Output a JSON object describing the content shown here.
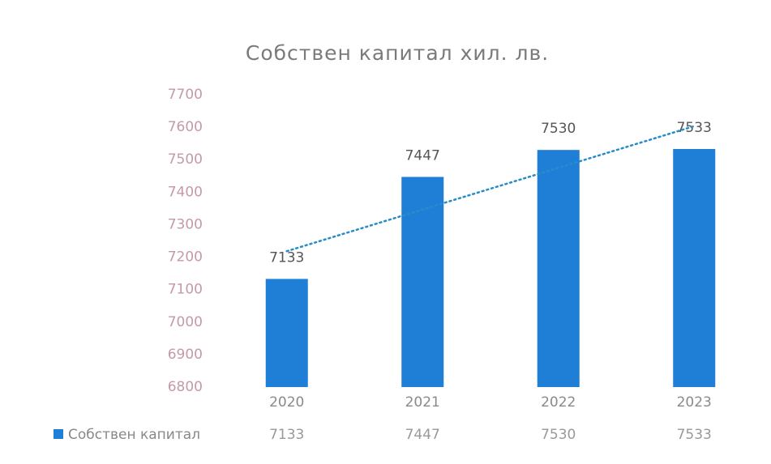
{
  "chart_data": {
    "type": "bar",
    "title": "Собствен капитал хил. лв.",
    "categories": [
      "2020",
      "2021",
      "2022",
      "2023"
    ],
    "series": [
      {
        "name": "Собствен капитал",
        "color": "#1f7fd6",
        "values": [
          7133,
          7447,
          7530,
          7533
        ]
      }
    ],
    "ylim": [
      6800,
      7700
    ],
    "yticks": [
      6800,
      6900,
      7000,
      7100,
      7200,
      7300,
      7400,
      7500,
      7600,
      7700
    ],
    "grid": false,
    "trendline": "linear",
    "trendline_color": "#2a8bc9",
    "data_table": true
  }
}
